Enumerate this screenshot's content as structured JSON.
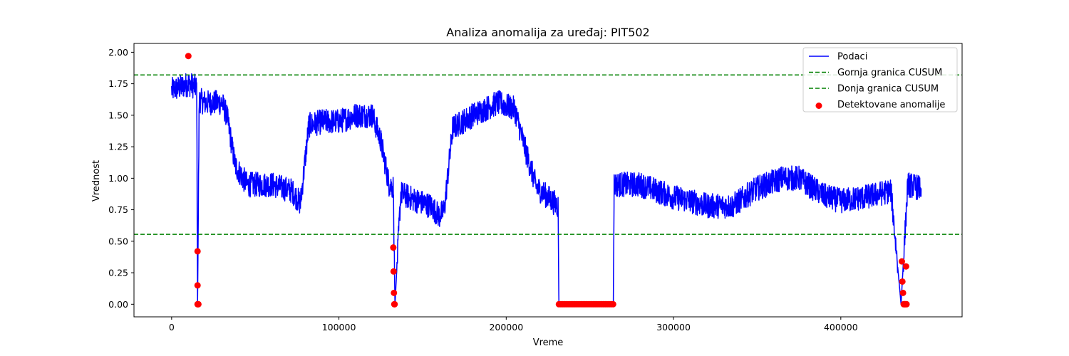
{
  "chart_data": {
    "type": "line",
    "title": "Analiza anomalija za uređaj: PIT502",
    "xlabel": "Vreme",
    "ylabel": "Vrednost",
    "xlim": [
      -22500,
      472500
    ],
    "ylim": [
      -0.1,
      2.07
    ],
    "xticks": [
      0,
      100000,
      200000,
      300000,
      400000
    ],
    "xtick_labels": [
      "0",
      "100000",
      "200000",
      "300000",
      "400000"
    ],
    "yticks": [
      0.0,
      0.25,
      0.5,
      0.75,
      1.0,
      1.25,
      1.5,
      1.75,
      2.0
    ],
    "ytick_labels": [
      "0.00",
      "0.25",
      "0.50",
      "0.75",
      "1.00",
      "1.25",
      "1.50",
      "1.75",
      "2.00"
    ],
    "grid": false,
    "legend_position": "top-right",
    "legend": [
      {
        "label": "Podaci",
        "kind": "line",
        "color": "#0000ff"
      },
      {
        "label": "Gornja granica CUSUM",
        "kind": "dashed",
        "color": "#008000"
      },
      {
        "label": "Donja granica CUSUM",
        "kind": "dashed",
        "color": "#008000"
      },
      {
        "label": "Detektovane anomalije",
        "kind": "marker",
        "color": "#ff0000"
      }
    ],
    "series": [
      {
        "name": "Podaci",
        "color": "#0000ff",
        "noise_amplitude": 0.1,
        "x": [
          0,
          5000,
          10000,
          15000,
          15500,
          16500,
          20000,
          30000,
          33000,
          38000,
          45000,
          60000,
          72000,
          77000,
          82000,
          90000,
          100000,
          110000,
          120000,
          125000,
          130000,
          132500,
          133500,
          137000,
          145000,
          155000,
          160000,
          163000,
          168000,
          180000,
          195000,
          205000,
          212000,
          218000,
          225000,
          231000,
          231500,
          264000,
          264500,
          270000,
          280000,
          290000,
          300000,
          310000,
          320000,
          335000,
          350000,
          365000,
          375000,
          390000,
          400000,
          415000,
          430000,
          436000,
          440000,
          448000
        ],
        "y": [
          1.7,
          1.72,
          1.75,
          1.72,
          0.0,
          1.62,
          1.6,
          1.6,
          1.5,
          1.1,
          0.95,
          0.95,
          0.9,
          0.8,
          1.42,
          1.45,
          1.45,
          1.5,
          1.5,
          1.3,
          0.95,
          0.93,
          0.0,
          0.88,
          0.83,
          0.78,
          0.7,
          0.75,
          1.4,
          1.5,
          1.6,
          1.55,
          1.2,
          0.93,
          0.85,
          0.78,
          0.0,
          0.0,
          0.95,
          0.95,
          0.95,
          0.9,
          0.85,
          0.82,
          0.78,
          0.78,
          0.92,
          1.0,
          1.0,
          0.86,
          0.82,
          0.85,
          0.9,
          0.0,
          0.95,
          0.92
        ]
      },
      {
        "name": "Gornja granica CUSUM",
        "color": "#008000",
        "y": 1.82
      },
      {
        "name": "Donja granica CUSUM",
        "color": "#008000",
        "y": 0.555
      },
      {
        "name": "Detektovane anomalije",
        "color": "#ff0000",
        "x": [
          10000,
          15500,
          15500,
          15500,
          15700,
          16000,
          132500,
          132700,
          132900,
          133100,
          133300,
          436500,
          436800,
          437200,
          437600,
          438000,
          438500,
          439000,
          439300
        ],
        "y": [
          1.97,
          0.42,
          0.15,
          0.0,
          0.0,
          0.0,
          0.45,
          0.26,
          0.09,
          0.0,
          0.0,
          0.34,
          0.18,
          0.09,
          0.0,
          0.0,
          0.0,
          0.3,
          0.0
        ],
        "run_x": [
          231500,
          264000
        ],
        "run_y": 0.0
      }
    ]
  }
}
